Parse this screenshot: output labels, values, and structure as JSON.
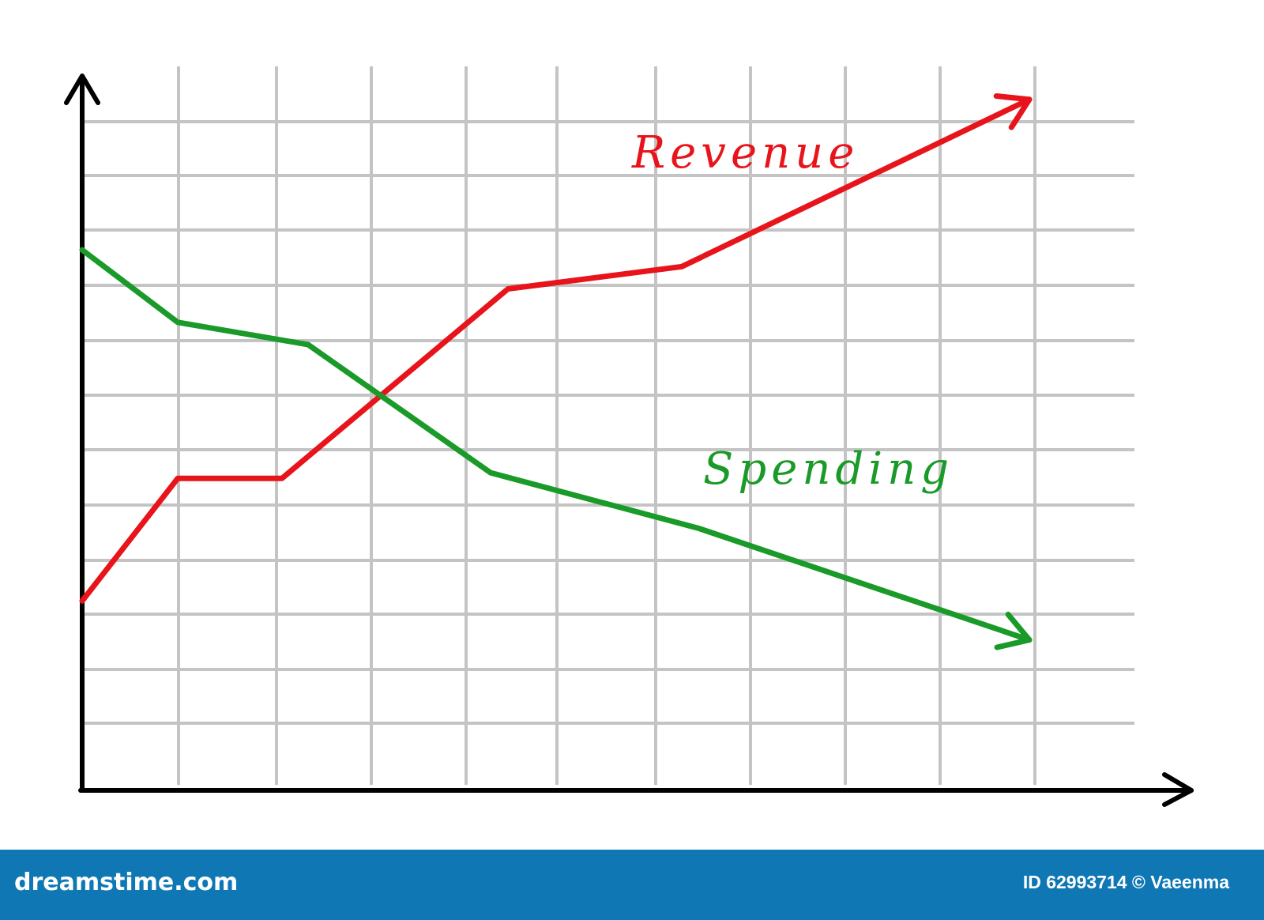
{
  "chart_data": {
    "type": "line",
    "title": "",
    "xlabel": "",
    "ylabel": "",
    "x": [
      0,
      1,
      2,
      3,
      4,
      5,
      6,
      7,
      8,
      9,
      10,
      11
    ],
    "xlim": [
      0,
      11
    ],
    "ylim": [
      0,
      12
    ],
    "grid": true,
    "axis_arrows": true,
    "legend": "labels placed next to lines",
    "series": [
      {
        "name": "Revenue",
        "color": "#e8141b",
        "x": [
          0,
          1.1,
          2.3,
          4.9,
          6.9,
          10.9
        ],
        "y": [
          3.4,
          5.6,
          5.6,
          9.0,
          9.4,
          12.4
        ]
      },
      {
        "name": "Spending",
        "color": "#1a9a28",
        "x": [
          0,
          1.1,
          2.6,
          4.7,
          7.1,
          10.9
        ],
        "y": [
          9.7,
          8.4,
          8.0,
          5.7,
          4.7,
          2.7
        ]
      }
    ]
  },
  "footer": {
    "brand": "dreamstime.com",
    "credit": "ID 62993714 © Vaeenma"
  }
}
